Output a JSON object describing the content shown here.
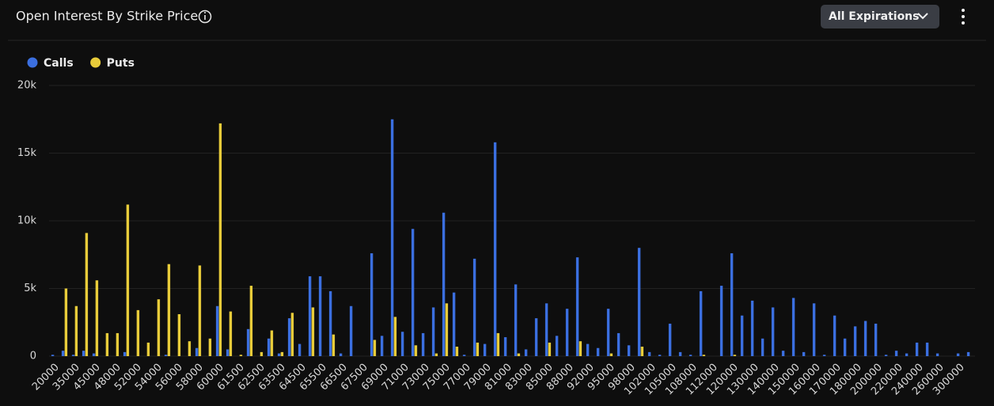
{
  "header": {
    "title": "Open Interest By Strike Price",
    "button": "All Expirations"
  },
  "chart_data": {
    "type": "bar",
    "categories": [
      "20000",
      null,
      "35000",
      null,
      "45000",
      null,
      "48000",
      null,
      "52000",
      null,
      "54000",
      null,
      "56000",
      null,
      "58000",
      null,
      "60000",
      null,
      "61500",
      null,
      "62500",
      null,
      "63500",
      null,
      "64500",
      null,
      "65500",
      null,
      "66500",
      null,
      "67500",
      null,
      "69000",
      null,
      "71000",
      null,
      "73000",
      null,
      "75000",
      null,
      "77000",
      null,
      "79000",
      null,
      "81000",
      null,
      "83000",
      null,
      "85000",
      null,
      "88000",
      null,
      "92000",
      null,
      "95000",
      null,
      "98000",
      null,
      "102000",
      null,
      "105000",
      null,
      "108000",
      null,
      "112000",
      null,
      "120000",
      null,
      "130000",
      null,
      "140000",
      null,
      "150000",
      null,
      "160000",
      null,
      "170000",
      null,
      "180000",
      null,
      "200000",
      null,
      "220000",
      null,
      "240000",
      null,
      "260000",
      null,
      "300000",
      null
    ],
    "series": [
      {
        "name": "Calls",
        "color": "#3b6fe0",
        "values": [
          100,
          400,
          100,
          400,
          200,
          0,
          0,
          300,
          0,
          0,
          0,
          100,
          0,
          0,
          600,
          0,
          3700,
          500,
          0,
          2000,
          0,
          1300,
          200,
          2800,
          900,
          5900,
          5900,
          4800,
          200,
          3700,
          0,
          7600,
          1500,
          17500,
          1800,
          9400,
          1700,
          3600,
          10600,
          4700,
          100,
          7200,
          900,
          15800,
          1400,
          5300,
          500,
          2800,
          3900,
          1500,
          3500,
          7300,
          900,
          600,
          3500,
          1700,
          800,
          8000,
          300,
          100,
          2400,
          300,
          100,
          4800,
          0,
          5200,
          7600,
          3000,
          4100,
          1300,
          3600,
          400,
          4300,
          300,
          3900,
          100,
          3000,
          1300,
          2200,
          2600,
          2400,
          100,
          400,
          200,
          1000,
          1000,
          200,
          0,
          200,
          300
        ]
      },
      {
        "name": "Puts",
        "color": "#e8cc3a",
        "values": [
          0,
          5000,
          3700,
          9100,
          5600,
          1700,
          1700,
          11200,
          3400,
          1000,
          4200,
          6800,
          3100,
          1100,
          6700,
          1300,
          17200,
          3300,
          100,
          5200,
          300,
          1900,
          300,
          3200,
          0,
          3600,
          0,
          1600,
          0,
          0,
          0,
          1200,
          0,
          2900,
          0,
          800,
          0,
          200,
          3900,
          700,
          0,
          1000,
          0,
          1700,
          0,
          200,
          0,
          0,
          1000,
          0,
          0,
          1100,
          0,
          0,
          200,
          0,
          0,
          700,
          0,
          0,
          0,
          0,
          0,
          100,
          0,
          0,
          100,
          0,
          0,
          0,
          0,
          0,
          0,
          0,
          0,
          0,
          0,
          0,
          0,
          0,
          0,
          0,
          0,
          0,
          0,
          0,
          0,
          0,
          0,
          0
        ]
      }
    ],
    "ylim": [
      0,
      20000
    ],
    "yticks": [
      {
        "value": 0,
        "label": "0"
      },
      {
        "value": 5000,
        "label": "5k"
      },
      {
        "value": 10000,
        "label": "10k"
      },
      {
        "value": 15000,
        "label": "15k"
      },
      {
        "value": 20000,
        "label": "20k"
      }
    ],
    "grid": true,
    "legend": "top-left"
  }
}
